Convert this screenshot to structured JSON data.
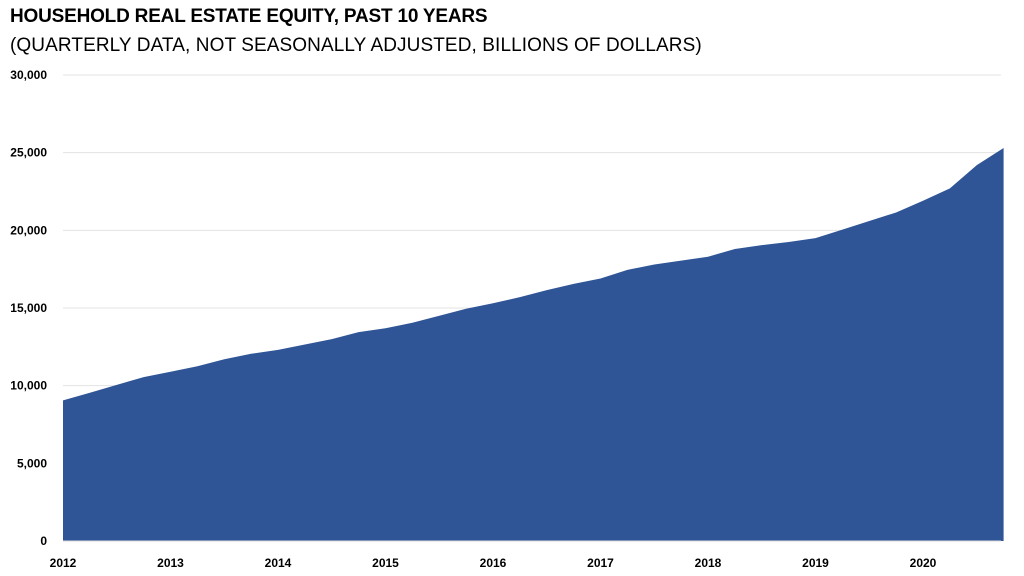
{
  "chart_data": {
    "type": "area",
    "title": "HOUSEHOLD REAL ESTATE EQUITY, PAST 10 YEARS",
    "subtitle": "(QUARTERLY DATA, NOT SEASONALLY ADJUSTED, BILLIONS OF DOLLARS)",
    "xlabel": "",
    "ylabel": "",
    "x_ticks": [
      "2012",
      "2013",
      "2014",
      "2015",
      "2016",
      "2017",
      "2018",
      "2019",
      "2020"
    ],
    "y_ticks": [
      "0",
      "5,000",
      "10,000",
      "15,000",
      "20,000",
      "25,000",
      "30,000"
    ],
    "ylim": [
      0,
      30000
    ],
    "grid": "horizontal",
    "color": "#2f5597",
    "series": [
      {
        "x": [
          "2012 Q1",
          "2012 Q2",
          "2012 Q3",
          "2012 Q4",
          "2013 Q1",
          "2013 Q2",
          "2013 Q3",
          "2013 Q4",
          "2014 Q1",
          "2014 Q2",
          "2014 Q3",
          "2014 Q4",
          "2015 Q1",
          "2015 Q2",
          "2015 Q3",
          "2015 Q4",
          "2016 Q1",
          "2016 Q2",
          "2016 Q3",
          "2016 Q4",
          "2017 Q1",
          "2017 Q2",
          "2017 Q3",
          "2017 Q4",
          "2018 Q1",
          "2018 Q2",
          "2018 Q3",
          "2018 Q4",
          "2019 Q1",
          "2019 Q2",
          "2019 Q3",
          "2019 Q4",
          "2020 Q1",
          "2020 Q2",
          "2020 Q3",
          "2020 Q4"
        ],
        "values": [
          9050,
          9550,
          10050,
          10550,
          10900,
          11250,
          11700,
          12050,
          12300,
          12650,
          13000,
          13450,
          13700,
          14050,
          14500,
          14950,
          15300,
          15700,
          16150,
          16550,
          16900,
          17450,
          17800,
          18050,
          18300,
          18800,
          19050,
          19250,
          19500,
          20050,
          20600,
          21150,
          21900,
          22700,
          24200,
          25300
        ]
      }
    ]
  }
}
